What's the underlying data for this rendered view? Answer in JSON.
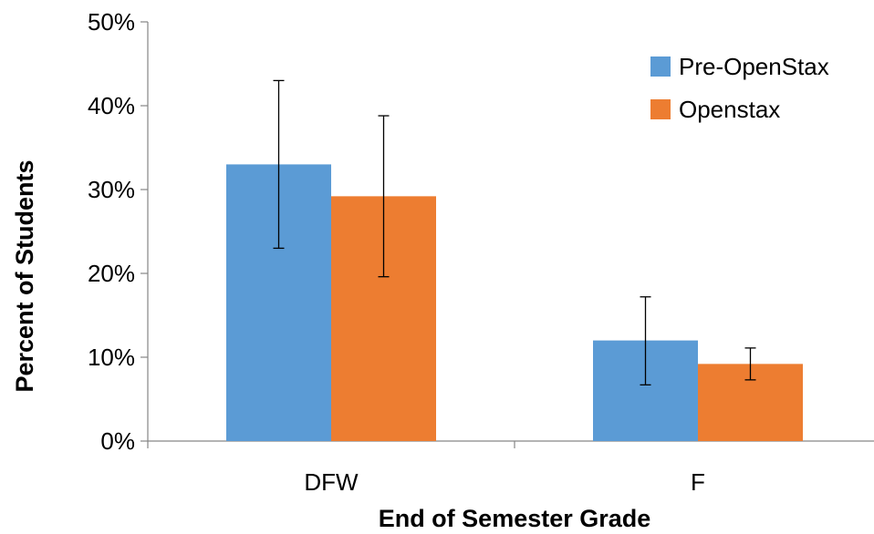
{
  "chart_data": {
    "type": "bar",
    "title": "",
    "xlabel": "End of Semester Grade",
    "ylabel": "Percent of Students",
    "categories": [
      "DFW",
      "F"
    ],
    "series": [
      {
        "name": "Pre-OpenStax",
        "color": "#5b9bd5",
        "values": [
          0.33,
          0.12
        ],
        "error_low": [
          0.23,
          0.067
        ],
        "error_high": [
          0.43,
          0.172
        ]
      },
      {
        "name": "Openstax",
        "color": "#ed7d31",
        "values": [
          0.292,
          0.092
        ],
        "error_low": [
          0.196,
          0.073
        ],
        "error_high": [
          0.388,
          0.111
        ]
      }
    ],
    "ylim": [
      0,
      0.5
    ],
    "y_ticks": [
      0,
      0.1,
      0.2,
      0.3,
      0.4,
      0.5
    ],
    "y_tick_labels": [
      "0%",
      "10%",
      "20%",
      "30%",
      "40%",
      "50%"
    ],
    "grid": false,
    "legend_position": "top-right"
  }
}
